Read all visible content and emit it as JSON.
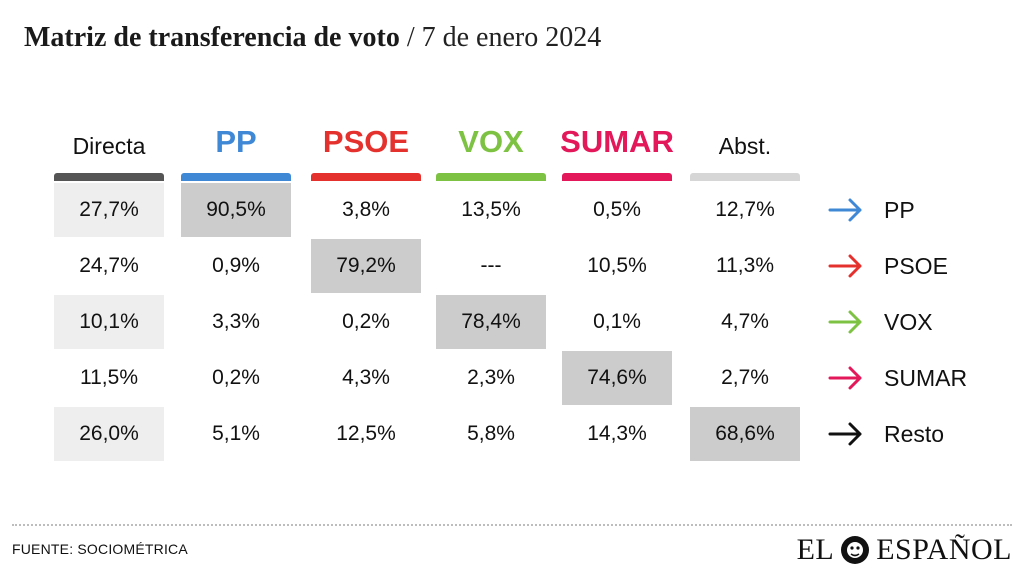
{
  "title": {
    "main": "Matriz de transferencia de voto",
    "separator": " / ",
    "date": "7 de enero 2024"
  },
  "chart_data": {
    "type": "table",
    "columns": [
      {
        "label": "Directa",
        "color": "#555555",
        "style": "plain"
      },
      {
        "label": "PP",
        "color": "#3f88d6",
        "style": "party"
      },
      {
        "label": "PSOE",
        "color": "#e5312e",
        "style": "party"
      },
      {
        "label": "VOX",
        "color": "#7dc242",
        "style": "party"
      },
      {
        "label": "SUMAR",
        "color": "#e3185b",
        "style": "party"
      },
      {
        "label": "Abst.",
        "color": "#d6d6d6",
        "style": "plain"
      }
    ],
    "rows": [
      {
        "label": "PP",
        "arrow_color": "#3f88d6",
        "cells": [
          "27,7%",
          "90,5%",
          "3,8%",
          "13,5%",
          "0,5%",
          "12,7%"
        ]
      },
      {
        "label": "PSOE",
        "arrow_color": "#e5312e",
        "cells": [
          "24,7%",
          "0,9%",
          "79,2%",
          "---",
          "10,5%",
          "11,3%"
        ]
      },
      {
        "label": "VOX",
        "arrow_color": "#7dc242",
        "cells": [
          "10,1%",
          "3,3%",
          "0,2%",
          "78,4%",
          "0,1%",
          "4,7%"
        ]
      },
      {
        "label": "SUMAR",
        "arrow_color": "#e3185b",
        "cells": [
          "11,5%",
          "0,2%",
          "4,3%",
          "2,3%",
          "74,6%",
          "2,7%"
        ]
      },
      {
        "label": "Resto",
        "arrow_color": "#111111",
        "cells": [
          "26,0%",
          "5,1%",
          "12,5%",
          "5,8%",
          "14,3%",
          "68,6%"
        ]
      }
    ],
    "highlight_color": "#cccccc",
    "stripe_color": "#eeeeee"
  },
  "footer": {
    "source": "FUENTE: SOCIOMÉTRICA",
    "logo_left": "EL",
    "logo_right": "ESPAÑOL",
    "logo_icon": "lion-icon"
  }
}
